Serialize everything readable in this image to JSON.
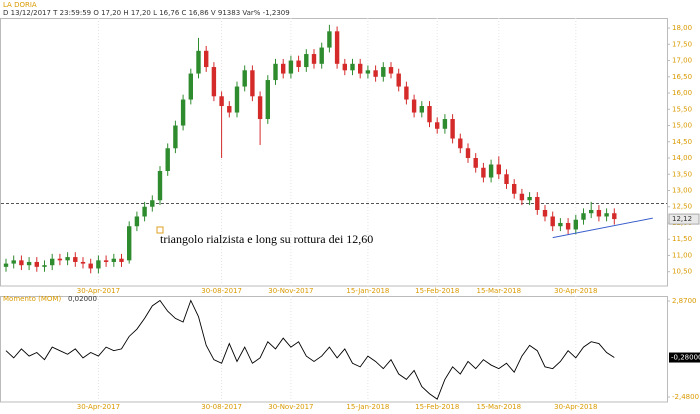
{
  "header": {
    "title": "LA DORIA",
    "info": "D 13/12/2017   T 23:59:59   O 17,20   H 17,20   L 16,76   C 16,86   V 91383   Var% -1,2309"
  },
  "chart_data": [
    {
      "type": "candlestick",
      "categories": [
        null,
        null,
        null,
        null,
        null,
        null,
        null,
        null,
        null,
        null,
        null,
        null,
        "30-Apr-2017",
        null,
        null,
        null,
        null,
        null,
        null,
        null,
        null,
        null,
        null,
        null,
        null,
        null,
        null,
        null,
        "30-08-2017",
        null,
        null,
        null,
        null,
        null,
        null,
        null,
        null,
        "30-Nov-2017",
        null,
        null,
        null,
        null,
        null,
        null,
        null,
        null,
        null,
        "15-Jan-2018",
        null,
        null,
        null,
        null,
        null,
        null,
        null,
        null,
        "15-Feb-2018",
        null,
        null,
        null,
        null,
        null,
        null,
        null,
        "15-Mar-2018",
        null,
        null,
        null,
        null,
        null,
        null,
        null,
        null,
        null,
        "30-Apr-2018",
        null,
        null,
        null,
        null,
        null
      ],
      "open": [
        10.65,
        10.75,
        10.85,
        10.7,
        10.8,
        10.65,
        10.7,
        10.9,
        10.85,
        10.95,
        10.8,
        10.75,
        10.6,
        10.85,
        10.8,
        10.9,
        10.85,
        11.9,
        12.2,
        12.5,
        12.7,
        13.6,
        14.3,
        15.0,
        15.8,
        16.6,
        17.3,
        16.8,
        15.9,
        15.6,
        15.4,
        16.2,
        16.7,
        15.9,
        15.2,
        16.4,
        16.9,
        16.6,
        17.0,
        16.8,
        17.2,
        16.9,
        17.4,
        17.9,
        16.9,
        16.7,
        16.9,
        16.6,
        16.7,
        16.5,
        16.8,
        16.6,
        16.2,
        15.8,
        15.4,
        15.6,
        15.1,
        14.9,
        15.2,
        14.6,
        14.3,
        14.0,
        13.7,
        13.4,
        13.8,
        13.5,
        13.2,
        12.9,
        12.7,
        12.8,
        12.4,
        12.2,
        11.9,
        12.0,
        11.8,
        12.1,
        12.3,
        12.4,
        12.2,
        12.3
      ],
      "high": [
        10.9,
        11.0,
        11.0,
        10.95,
        10.95,
        10.85,
        11.05,
        11.05,
        11.1,
        11.1,
        10.95,
        10.9,
        11.0,
        11.0,
        11.05,
        11.05,
        12.05,
        12.35,
        12.65,
        12.85,
        13.75,
        14.45,
        15.15,
        15.95,
        16.75,
        17.7,
        17.45,
        16.95,
        16.05,
        15.75,
        16.35,
        16.85,
        16.85,
        16.05,
        16.55,
        17.05,
        17.05,
        17.15,
        17.15,
        17.35,
        17.35,
        17.55,
        18.1,
        18.05,
        17.05,
        17.05,
        17.05,
        16.85,
        16.85,
        16.95,
        16.95,
        16.75,
        16.35,
        15.95,
        15.75,
        15.75,
        15.25,
        15.35,
        15.35,
        14.75,
        14.45,
        14.15,
        13.85,
        13.95,
        14.05,
        13.65,
        13.35,
        13.05,
        12.95,
        12.95,
        12.55,
        12.35,
        12.15,
        12.15,
        12.25,
        12.45,
        12.65,
        12.55,
        12.45,
        12.45
      ],
      "low": [
        10.5,
        10.6,
        10.55,
        10.55,
        10.5,
        10.5,
        10.55,
        10.7,
        10.7,
        10.65,
        10.6,
        10.45,
        10.45,
        10.65,
        10.65,
        10.65,
        10.75,
        11.75,
        12.05,
        12.35,
        12.55,
        13.45,
        14.15,
        14.85,
        15.65,
        16.45,
        16.65,
        15.75,
        14.0,
        15.25,
        15.25,
        16.05,
        15.75,
        14.4,
        15.05,
        16.25,
        16.45,
        16.45,
        16.65,
        16.65,
        16.75,
        16.75,
        17.25,
        16.75,
        16.55,
        16.55,
        16.45,
        16.45,
        16.35,
        16.35,
        16.45,
        16.05,
        15.65,
        15.25,
        15.25,
        14.95,
        14.75,
        14.75,
        14.45,
        14.15,
        13.85,
        13.55,
        13.25,
        13.25,
        13.35,
        13.05,
        12.75,
        12.55,
        12.55,
        12.25,
        12.05,
        11.75,
        11.75,
        11.65,
        11.65,
        11.95,
        12.15,
        12.05,
        12.05,
        11.95
      ],
      "close": [
        10.75,
        10.85,
        10.7,
        10.8,
        10.65,
        10.7,
        10.9,
        10.85,
        10.95,
        10.8,
        10.75,
        10.6,
        10.85,
        10.8,
        10.9,
        10.8,
        11.9,
        12.2,
        12.5,
        12.7,
        13.6,
        14.3,
        15.0,
        15.8,
        16.6,
        17.3,
        16.8,
        15.9,
        15.6,
        15.4,
        16.2,
        16.7,
        15.9,
        15.2,
        16.4,
        16.9,
        16.6,
        17.0,
        16.8,
        17.2,
        16.9,
        17.4,
        17.9,
        16.9,
        16.7,
        16.9,
        16.6,
        16.7,
        16.5,
        16.8,
        16.6,
        16.2,
        15.8,
        15.4,
        15.6,
        15.1,
        14.9,
        15.2,
        14.6,
        14.3,
        14.0,
        13.7,
        13.4,
        13.8,
        13.5,
        13.2,
        12.9,
        12.7,
        12.8,
        12.4,
        12.2,
        11.9,
        12.0,
        11.8,
        12.1,
        12.3,
        12.4,
        12.2,
        12.3,
        12.12
      ],
      "last_label": "12,12",
      "up_color": "#2e8b2e",
      "down_color": "#d42a2a",
      "ylim": [
        10.06,
        18.31
      ],
      "yticks": [
        {
          "value": 18,
          "label": "18,00"
        },
        {
          "value": 17.5,
          "label": "17,50"
        },
        {
          "value": 17,
          "label": "17,00"
        },
        {
          "value": 16.5,
          "label": "16,50"
        },
        {
          "value": 16,
          "label": "16,00"
        },
        {
          "value": 15.5,
          "label": "15,50"
        },
        {
          "value": 15,
          "label": "15,00"
        },
        {
          "value": 14.5,
          "label": "14,50"
        },
        {
          "value": 14,
          "label": "14,00"
        },
        {
          "value": 13.5,
          "label": "13,50"
        },
        {
          "value": 13,
          "label": "13,00"
        },
        {
          "value": 12.5,
          "label": "12,50"
        },
        {
          "value": 12,
          "label": "12,00"
        },
        {
          "value": 11.5,
          "label": "11,50"
        },
        {
          "value": 11,
          "label": "11,00"
        },
        {
          "value": 10.5,
          "label": "10,50"
        }
      ],
      "hlines": [
        12.6
      ],
      "trendline": {
        "from_index": 71,
        "from_value": 11.55,
        "to_index": 84,
        "to_value": 12.15,
        "color": "#3a5fcd"
      },
      "annotation": "triangolo rialzista e long su rottura dei 12,60"
    },
    {
      "type": "line",
      "title": "Momento (MOM)",
      "header_value": "0,02000",
      "last_label": "-0,28000",
      "color": "#000000",
      "categories": [
        null,
        null,
        null,
        null,
        null,
        null,
        null,
        null,
        null,
        null,
        null,
        null,
        "30-Apr-2017",
        null,
        null,
        null,
        null,
        null,
        null,
        null,
        null,
        null,
        null,
        null,
        null,
        null,
        null,
        null,
        "30-08-2017",
        null,
        null,
        null,
        null,
        null,
        null,
        null,
        null,
        "30-Nov-2017",
        null,
        null,
        null,
        null,
        null,
        null,
        null,
        null,
        null,
        "15-Jan-2018",
        null,
        null,
        null,
        null,
        null,
        null,
        null,
        null,
        "15-Feb-2018",
        null,
        null,
        null,
        null,
        null,
        null,
        null,
        "15-Mar-2018",
        null,
        null,
        null,
        null,
        null,
        null,
        null,
        null,
        null,
        "30-Apr-2018",
        null,
        null,
        null,
        null,
        null
      ],
      "values": [
        0.1,
        -0.3,
        0.2,
        -0.2,
        0.0,
        -0.4,
        0.3,
        0.1,
        -0.1,
        0.2,
        -0.3,
        0.0,
        -0.2,
        0.3,
        0.1,
        0.2,
        0.9,
        1.3,
        1.9,
        2.6,
        2.9,
        2.3,
        1.9,
        1.7,
        2.9,
        2.0,
        0.4,
        -0.4,
        -0.6,
        0.5,
        -0.5,
        0.3,
        -0.6,
        -0.3,
        0.6,
        0.2,
        0.8,
        0.3,
        0.6,
        -0.2,
        -0.5,
        -0.2,
        0.3,
        -0.3,
        0.2,
        -0.6,
        -0.8,
        -0.2,
        -0.5,
        -0.9,
        -0.4,
        -1.2,
        -1.5,
        -1.0,
        -1.9,
        -2.3,
        -2.6,
        -1.5,
        -0.8,
        -1.2,
        -0.5,
        -0.9,
        -0.4,
        -0.7,
        -0.9,
        -0.6,
        -1.1,
        -0.2,
        0.4,
        0.1,
        -0.8,
        -0.9,
        -0.5,
        0.1,
        -0.3,
        0.3,
        0.6,
        0.5,
        0.0,
        -0.28
      ],
      "ylim": [
        -2.76,
        3.15
      ],
      "yticks": [
        {
          "value": 2.87,
          "label": "2,8700"
        },
        {
          "value": -2.48,
          "label": "-2,4800"
        }
      ]
    }
  ]
}
